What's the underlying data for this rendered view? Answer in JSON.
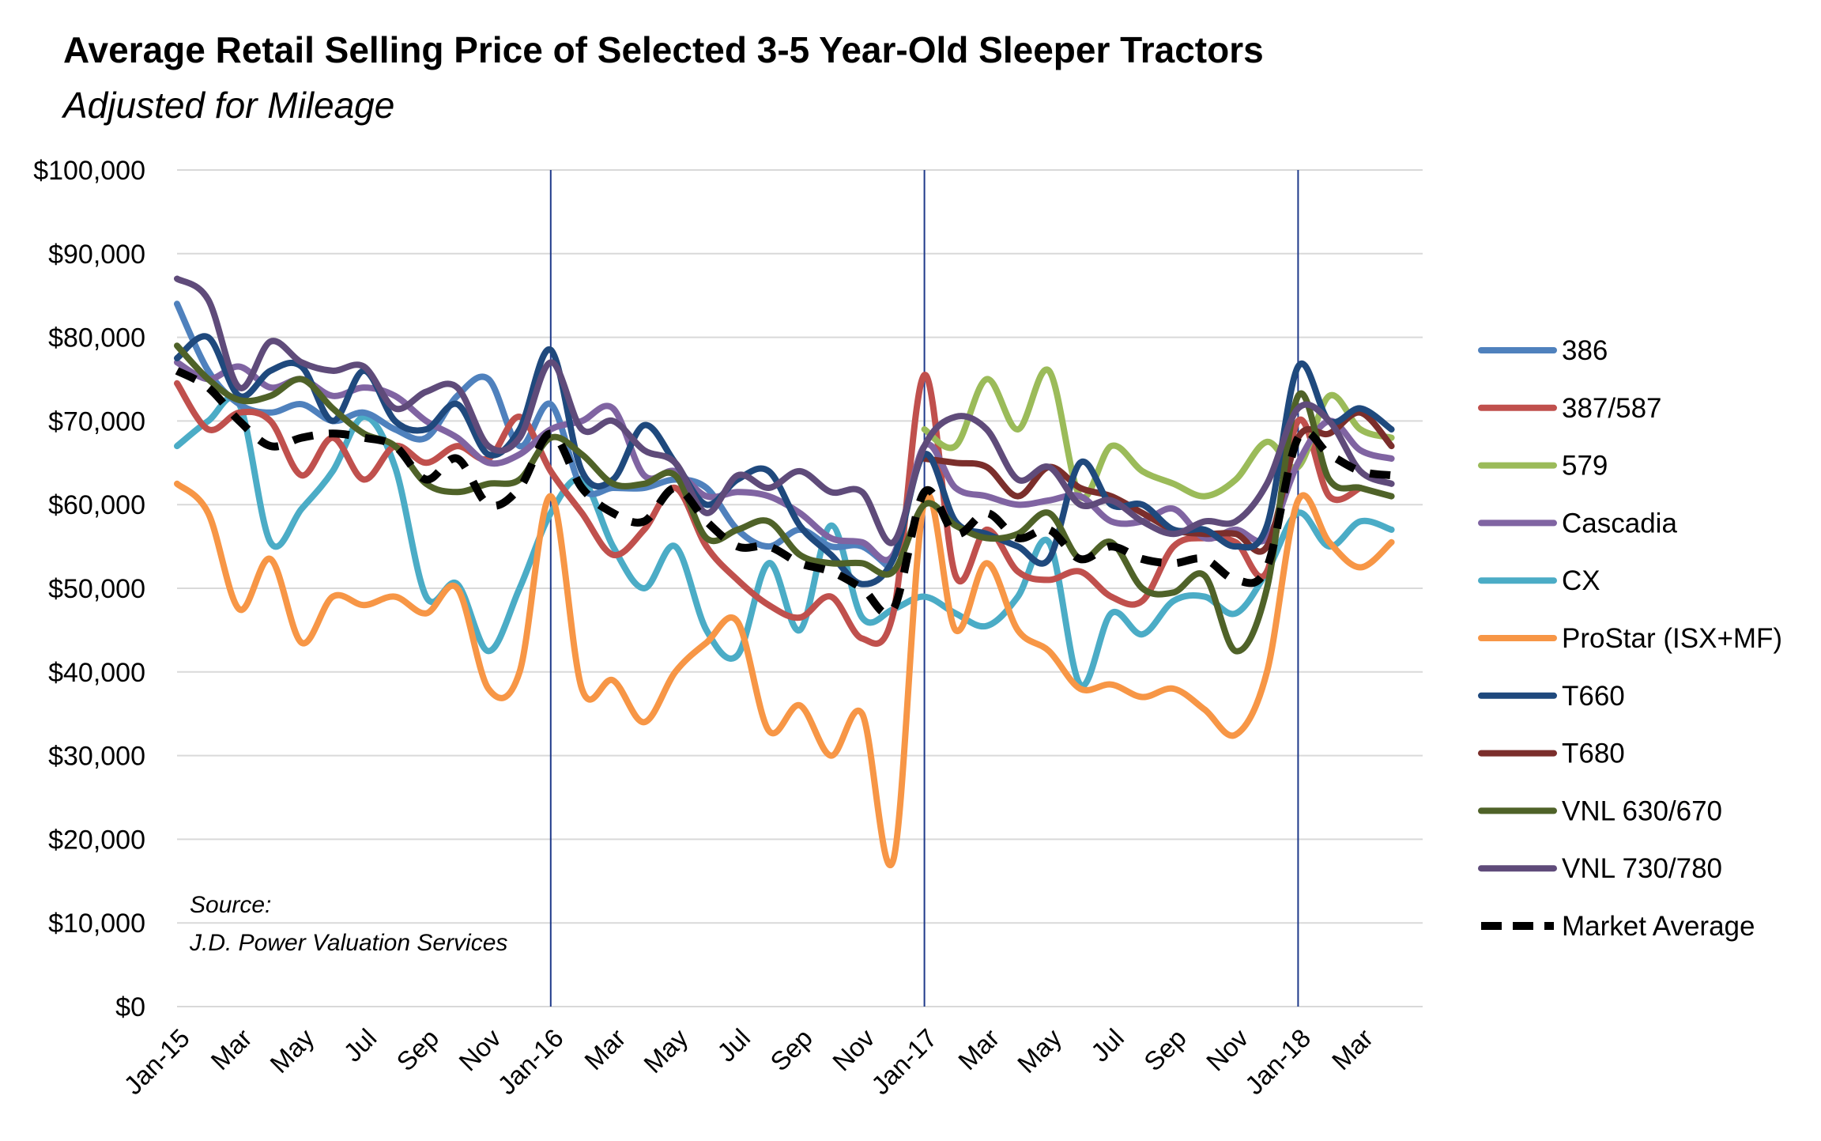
{
  "title": "Average Retail Selling Price of Selected 3-5 Year-Old Sleeper Tractors",
  "subtitle": "Adjusted for Mileage",
  "source_lines": [
    "Source:",
    "J.D. Power Valuation Services"
  ],
  "chart_data": {
    "type": "line",
    "title": "Average Retail Selling Price of Selected 3-5 Year-Old Sleeper Tractors",
    "subtitle": "Adjusted for Mileage",
    "xlabel": "",
    "ylabel": "",
    "ylim": [
      0,
      100000
    ],
    "yticks": [
      0,
      10000,
      20000,
      30000,
      40000,
      50000,
      60000,
      70000,
      80000,
      90000,
      100000
    ],
    "ytick_labels": [
      "$0",
      "$10,000",
      "$20,000",
      "$30,000",
      "$40,000",
      "$50,000",
      "$60,000",
      "$70,000",
      "$80,000",
      "$90,000",
      "$100,000"
    ],
    "x": [
      "Jan-15",
      "Feb-15",
      "Mar-15",
      "Apr-15",
      "May-15",
      "Jun-15",
      "Jul-15",
      "Aug-15",
      "Sep-15",
      "Oct-15",
      "Nov-15",
      "Dec-15",
      "Jan-16",
      "Feb-16",
      "Mar-16",
      "Apr-16",
      "May-16",
      "Jun-16",
      "Jul-16",
      "Aug-16",
      "Sep-16",
      "Oct-16",
      "Nov-16",
      "Dec-16",
      "Jan-17",
      "Feb-17",
      "Mar-17",
      "Apr-17",
      "May-17",
      "Jun-17",
      "Jul-17",
      "Aug-17",
      "Sep-17",
      "Oct-17",
      "Nov-17",
      "Dec-17",
      "Jan-18",
      "Feb-18",
      "Mar-18",
      "Apr-18"
    ],
    "xtick_labels": [
      "Jan-15",
      "Mar",
      "May",
      "Jul",
      "Sep",
      "Nov",
      "Jan-16",
      "Mar",
      "May",
      "Jul",
      "Sep",
      "Nov",
      "Jan-17",
      "Mar",
      "May",
      "Jul",
      "Sep",
      "Nov",
      "Jan-18",
      "Mar"
    ],
    "vertical_lines_at": [
      "Jan-16",
      "Jan-17",
      "Jan-18"
    ],
    "grid": true,
    "legend_position": "right",
    "series": [
      {
        "name": "386",
        "color": "#4f81bd",
        "dash": false,
        "values": [
          84000,
          76000,
          72000,
          71000,
          72000,
          70000,
          71000,
          69000,
          68000,
          73000,
          75000,
          67000,
          72000,
          62000,
          62000,
          62000,
          63000,
          62000,
          57000,
          55000,
          57000,
          55000,
          55000,
          52000,
          null,
          null,
          null,
          null,
          null,
          null,
          null,
          null,
          null,
          null,
          null,
          null,
          null,
          null,
          null,
          null
        ]
      },
      {
        "name": "387/587",
        "color": "#c0504d",
        "dash": false,
        "values": [
          74500,
          69000,
          71000,
          70000,
          63500,
          68000,
          63000,
          67000,
          65000,
          67000,
          65500,
          70500,
          64000,
          59000,
          54000,
          57000,
          62000,
          55000,
          51000,
          48000,
          46500,
          49000,
          44000,
          47000,
          75500,
          51500,
          57000,
          52000,
          51000,
          52000,
          49000,
          48500,
          55000,
          56000,
          55500,
          52000,
          70000,
          61000,
          62000,
          null
        ]
      },
      {
        "name": "579",
        "color": "#9bbb59",
        "dash": false,
        "values": [
          null,
          null,
          null,
          null,
          null,
          null,
          null,
          null,
          null,
          null,
          null,
          null,
          null,
          null,
          null,
          null,
          null,
          null,
          null,
          null,
          null,
          null,
          null,
          null,
          69000,
          67000,
          75000,
          69000,
          76000,
          61000,
          67000,
          64000,
          62500,
          61000,
          63000,
          67500,
          64500,
          73000,
          69000,
          68000
        ]
      },
      {
        "name": "Cascadia",
        "color": "#8064a2",
        "dash": false,
        "values": [
          77000,
          75000,
          76500,
          74000,
          75000,
          73000,
          74000,
          73000,
          70000,
          68000,
          65000,
          66000,
          69000,
          70000,
          71500,
          63500,
          64000,
          61000,
          61500,
          61000,
          59000,
          56000,
          55500,
          54000,
          67000,
          62000,
          61000,
          60000,
          60500,
          61000,
          58000,
          58000,
          59500,
          56000,
          57000,
          56000,
          65000,
          70000,
          66500,
          65500
        ]
      },
      {
        "name": "CX",
        "color": "#4bacc6",
        "dash": false,
        "values": [
          67000,
          70000,
          72000,
          55500,
          59500,
          64000,
          70500,
          64500,
          49000,
          50500,
          42500,
          50000,
          59000,
          63000,
          55000,
          50000,
          55000,
          45000,
          42000,
          53000,
          45000,
          57500,
          46500,
          47500,
          49000,
          47000,
          45500,
          49000,
          55500,
          38500,
          47000,
          44500,
          48500,
          49000,
          47000,
          52000,
          59000,
          55000,
          58000,
          57000
        ]
      },
      {
        "name": "ProStar (ISX+MF)",
        "color": "#f79646",
        "dash": false,
        "values": [
          62500,
          59000,
          47500,
          53500,
          43500,
          49000,
          48000,
          49000,
          47000,
          50000,
          38000,
          40000,
          61000,
          38000,
          39000,
          34000,
          40000,
          43500,
          46000,
          33000,
          36000,
          30000,
          35000,
          17500,
          60500,
          45000,
          53000,
          45000,
          42500,
          38000,
          38500,
          37000,
          38000,
          35500,
          32500,
          40000,
          60500,
          55500,
          52500,
          55500
        ]
      },
      {
        "name": "T660",
        "color": "#1f497d",
        "dash": false,
        "values": [
          77500,
          80000,
          73000,
          76000,
          76500,
          70000,
          76000,
          70000,
          69000,
          72000,
          66000,
          69000,
          78500,
          64000,
          63000,
          69500,
          65000,
          60000,
          63000,
          64000,
          57500,
          54000,
          50500,
          53500,
          66000,
          58000,
          56500,
          55000,
          53500,
          65000,
          60000,
          60000,
          57000,
          57000,
          55000,
          57500,
          76500,
          70000,
          71500,
          69000
        ]
      },
      {
        "name": "T680",
        "color": "#7b2e2b",
        "dash": false,
        "values": [
          null,
          null,
          null,
          null,
          null,
          null,
          null,
          null,
          null,
          null,
          null,
          null,
          null,
          null,
          null,
          null,
          null,
          null,
          null,
          null,
          null,
          null,
          null,
          null,
          65500,
          65000,
          64500,
          61000,
          64500,
          62000,
          61000,
          59000,
          57000,
          56500,
          56500,
          55000,
          68000,
          68500,
          71000,
          67000
        ]
      },
      {
        "name": "VNL 630/670",
        "color": "#4f6228",
        "dash": false,
        "values": [
          79000,
          75000,
          72500,
          73000,
          75000,
          71500,
          68500,
          67000,
          62500,
          61500,
          62500,
          63000,
          68000,
          66000,
          62500,
          62500,
          63500,
          56000,
          57000,
          58000,
          54000,
          53000,
          53000,
          52000,
          60000,
          57500,
          56000,
          56500,
          59000,
          53500,
          55500,
          50000,
          49500,
          51500,
          42500,
          50000,
          73000,
          63000,
          62000,
          61000
        ]
      },
      {
        "name": "VNL 730/780",
        "color": "#5f4b7a",
        "dash": false,
        "values": [
          87000,
          84500,
          74000,
          79500,
          77000,
          76000,
          76500,
          71500,
          73500,
          74000,
          67000,
          68000,
          77000,
          69000,
          70000,
          66500,
          65000,
          59000,
          63500,
          62000,
          64000,
          61500,
          61500,
          55500,
          67000,
          70500,
          69000,
          63000,
          64500,
          60000,
          60500,
          58000,
          56500,
          58000,
          58000,
          62500,
          71500,
          70000,
          64000,
          62500
        ]
      },
      {
        "name": "Market Average",
        "color": "#000000",
        "dash": true,
        "values": [
          76000,
          74000,
          70000,
          67000,
          68000,
          68500,
          68000,
          67000,
          63000,
          65500,
          60000,
          62000,
          68500,
          62000,
          59000,
          58000,
          62000,
          58000,
          55000,
          55000,
          53000,
          52000,
          50000,
          47500,
          61500,
          56500,
          59000,
          56000,
          57000,
          53500,
          55000,
          53500,
          53000,
          53500,
          51000,
          52500,
          68000,
          66000,
          64000,
          63500
        ]
      }
    ]
  }
}
